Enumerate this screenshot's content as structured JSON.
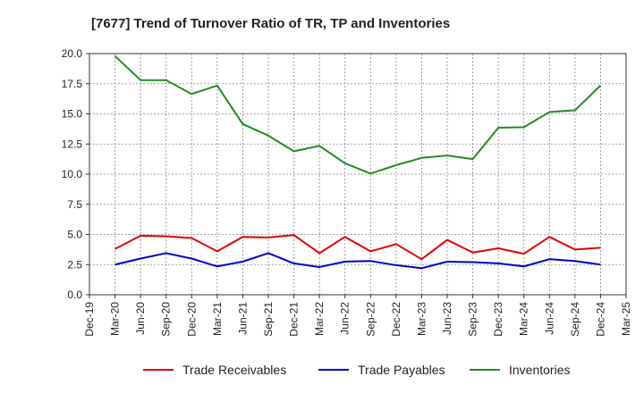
{
  "chart_data": {
    "type": "line",
    "title": "[7677]  Trend of Turnover Ratio of TR, TP and Inventories",
    "xlabel": "",
    "ylabel": "",
    "ylim": [
      0,
      20
    ],
    "yticks": [
      "0.0",
      "2.5",
      "5.0",
      "7.5",
      "10.0",
      "12.5",
      "15.0",
      "17.5",
      "20.0"
    ],
    "x_tick_labels": [
      "Dec-19",
      "Mar-20",
      "Jun-20",
      "Sep-20",
      "Dec-20",
      "Mar-21",
      "Jun-21",
      "Sep-21",
      "Dec-21",
      "Mar-22",
      "Jun-22",
      "Sep-22",
      "Dec-22",
      "Mar-23",
      "Jun-23",
      "Sep-23",
      "Dec-23",
      "Mar-24",
      "Jun-24",
      "Sep-24",
      "Dec-24",
      "Mar-25"
    ],
    "x": [
      "Mar-20",
      "Jun-20",
      "Sep-20",
      "Dec-20",
      "Mar-21",
      "Jun-21",
      "Sep-21",
      "Dec-21",
      "Mar-22",
      "Jun-22",
      "Sep-22",
      "Dec-22",
      "Mar-23",
      "Jun-23",
      "Sep-23",
      "Dec-23",
      "Mar-24",
      "Jun-24",
      "Sep-24",
      "Dec-24"
    ],
    "grid": true,
    "legend_position": "bottom",
    "series": [
      {
        "name": "Trade Receivables",
        "color": "#e00000",
        "values": [
          3.8,
          4.9,
          4.85,
          4.7,
          3.6,
          4.8,
          4.75,
          4.95,
          3.45,
          4.8,
          3.6,
          4.2,
          2.95,
          4.55,
          3.5,
          3.85,
          3.4,
          4.8,
          3.75,
          3.9
        ]
      },
      {
        "name": "Trade Payables",
        "color": "#0000cc",
        "values": [
          2.5,
          3.0,
          3.45,
          3.0,
          2.35,
          2.75,
          3.45,
          2.6,
          2.3,
          2.75,
          2.8,
          2.45,
          2.2,
          2.75,
          2.7,
          2.6,
          2.35,
          2.95,
          2.8,
          2.5
        ]
      },
      {
        "name": "Inventories",
        "color": "#228b22",
        "values": [
          19.8,
          17.8,
          17.8,
          16.65,
          17.35,
          14.15,
          13.2,
          11.9,
          12.35,
          10.9,
          10.05,
          10.75,
          11.35,
          11.55,
          11.25,
          13.85,
          13.9,
          15.15,
          15.3,
          17.35
        ]
      }
    ]
  }
}
